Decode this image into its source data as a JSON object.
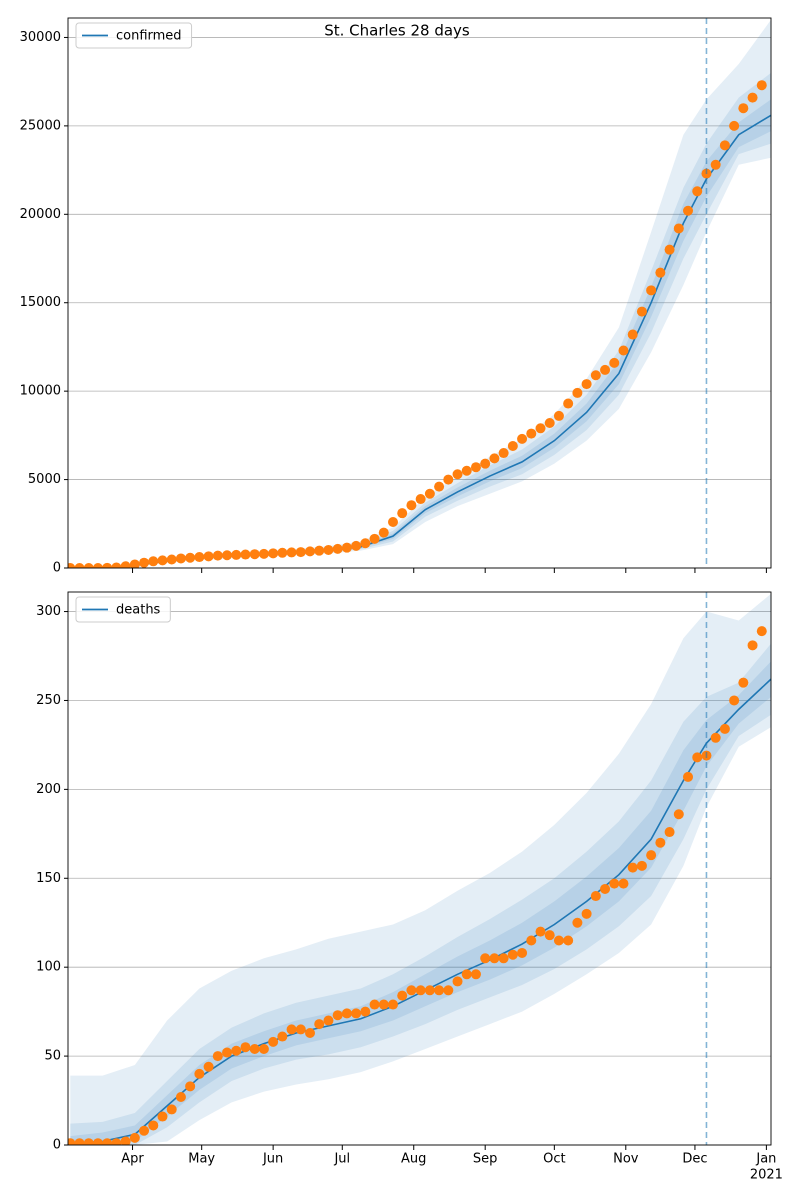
{
  "chart_data": [
    {
      "type": "line",
      "title": "St. Charles 28 days",
      "legend": "upper left",
      "grid": true,
      "xlim": [
        64,
        369
      ],
      "ylim": [
        0,
        31100
      ],
      "yticks": [
        0,
        5000,
        10000,
        15000,
        20000,
        25000,
        30000
      ],
      "xticks": [
        {
          "value": 92,
          "label": "Apr"
        },
        {
          "value": 122,
          "label": "May"
        },
        {
          "value": 153,
          "label": "Jun"
        },
        {
          "value": 183,
          "label": "Jul"
        },
        {
          "value": 214,
          "label": "Aug"
        },
        {
          "value": 245,
          "label": "Sep"
        },
        {
          "value": 275,
          "label": "Oct"
        },
        {
          "value": 306,
          "label": "Nov"
        },
        {
          "value": 336,
          "label": "Dec"
        },
        {
          "value": 367,
          "label": "Jan"
        }
      ],
      "xtick_labels": false,
      "vline": {
        "x": 341,
        "color": "#1f77b4"
      },
      "series": [
        {
          "name": "confirmed",
          "color": "#1f77b4",
          "x": [
            65,
            79,
            93,
            107,
            121,
            135,
            149,
            163,
            177,
            191,
            205,
            219,
            233,
            247,
            261,
            275,
            289,
            303,
            317,
            331,
            341,
            355,
            369
          ],
          "values": [
            0,
            20,
            150,
            400,
            600,
            700,
            780,
            880,
            1000,
            1200,
            1800,
            3300,
            4300,
            5200,
            6000,
            7200,
            8800,
            11000,
            15000,
            19500,
            22000,
            24500,
            25600
          ]
        }
      ],
      "bands": [
        {
          "color": "#1f77b4",
          "x": [
            65,
            79,
            93,
            107,
            121,
            135,
            149,
            163,
            177,
            191,
            205,
            219,
            233,
            247,
            261,
            275,
            289,
            303,
            317,
            331,
            341,
            355,
            369
          ],
          "lower": [
            0,
            0,
            80,
            290,
            460,
            560,
            640,
            720,
            820,
            980,
            1350,
            2600,
            3500,
            4200,
            4900,
            5900,
            7200,
            9000,
            12200,
            16000,
            19000,
            22800,
            23200
          ],
          "upper": [
            50,
            60,
            260,
            540,
            780,
            880,
            960,
            1080,
            1240,
            1500,
            2300,
            4000,
            5200,
            6300,
            7300,
            8700,
            10700,
            13600,
            19000,
            24500,
            26500,
            28500,
            31000
          ]
        },
        {
          "color": "#1f77b4",
          "x": [
            65,
            79,
            93,
            107,
            121,
            135,
            149,
            163,
            177,
            191,
            205,
            219,
            233,
            247,
            261,
            275,
            289,
            303,
            317,
            331,
            341,
            355,
            369
          ],
          "lower": [
            0,
            10,
            110,
            340,
            520,
            620,
            700,
            790,
            890,
            1060,
            1500,
            2900,
            3800,
            4600,
            5300,
            6400,
            7800,
            9800,
            13300,
            17500,
            20000,
            23400,
            24000
          ],
          "upper": [
            20,
            30,
            200,
            460,
            680,
            780,
            860,
            980,
            1120,
            1360,
            2100,
            3700,
            4800,
            5800,
            6700,
            8000,
            9800,
            12300,
            16800,
            21500,
            24000,
            26600,
            28000
          ]
        },
        {
          "color": "#1f77b4",
          "x": [
            65,
            79,
            93,
            107,
            121,
            135,
            149,
            163,
            177,
            191,
            205,
            219,
            233,
            247,
            261,
            275,
            289,
            303,
            317,
            331,
            341,
            355,
            369
          ],
          "lower": [
            0,
            15,
            130,
            370,
            560,
            660,
            740,
            830,
            940,
            1130,
            1650,
            3100,
            4050,
            4900,
            5650,
            6800,
            8300,
            10400,
            14200,
            18500,
            21000,
            23800,
            24700
          ],
          "upper": [
            10,
            25,
            170,
            430,
            640,
            740,
            820,
            930,
            1060,
            1280,
            1950,
            3500,
            4550,
            5500,
            6350,
            7600,
            9300,
            11700,
            15900,
            20600,
            23000,
            25200,
            26500
          ]
        }
      ],
      "observed": {
        "color": "#ff7f0e",
        "x": [
          65,
          69,
          73,
          77,
          81,
          85,
          89,
          93,
          97,
          101,
          105,
          109,
          113,
          117,
          121,
          125,
          129,
          133,
          137,
          141,
          145,
          149,
          153,
          157,
          161,
          165,
          169,
          173,
          177,
          181,
          185,
          189,
          193,
          197,
          201,
          205,
          209,
          213,
          217,
          221,
          225,
          229,
          233,
          237,
          241,
          245,
          249,
          253,
          257,
          261,
          265,
          269,
          273,
          277,
          281,
          285,
          289,
          293,
          297,
          301,
          305,
          309,
          313,
          317,
          321,
          325,
          329,
          333,
          337,
          341,
          345,
          349,
          353,
          357,
          361,
          365
        ],
        "values": [
          0,
          0,
          0,
          0,
          10,
          30,
          100,
          200,
          300,
          380,
          430,
          480,
          540,
          580,
          620,
          660,
          700,
          720,
          740,
          760,
          780,
          800,
          830,
          860,
          880,
          900,
          940,
          980,
          1020,
          1080,
          1150,
          1250,
          1400,
          1650,
          2000,
          2600,
          3100,
          3550,
          3900,
          4200,
          4600,
          5000,
          5300,
          5500,
          5700,
          5900,
          6200,
          6500,
          6900,
          7300,
          7600,
          7900,
          8200,
          8600,
          9300,
          9900,
          10400,
          10900,
          11200,
          11600,
          12300,
          13200,
          14500,
          15700,
          16700,
          18000,
          19200,
          20200,
          21300,
          22300,
          22800,
          23900,
          25000,
          26000,
          26600,
          27300
        ]
      }
    },
    {
      "type": "line",
      "legend": "upper left",
      "grid": true,
      "xlim": [
        64,
        369
      ],
      "ylim": [
        0,
        311
      ],
      "yticks": [
        0,
        50,
        100,
        150,
        200,
        250,
        300
      ],
      "xticks": [
        {
          "value": 92,
          "label": "Apr"
        },
        {
          "value": 122,
          "label": "May"
        },
        {
          "value": 153,
          "label": "Jun"
        },
        {
          "value": 183,
          "label": "Jul"
        },
        {
          "value": 214,
          "label": "Aug"
        },
        {
          "value": 245,
          "label": "Sep"
        },
        {
          "value": 275,
          "label": "Oct"
        },
        {
          "value": 306,
          "label": "Nov"
        },
        {
          "value": 336,
          "label": "Dec"
        },
        {
          "value": 367,
          "label": "Jan",
          "sublabel": "2021"
        }
      ],
      "xtick_labels": true,
      "vline": {
        "x": 341,
        "color": "#1f77b4"
      },
      "series": [
        {
          "name": "deaths",
          "color": "#1f77b4",
          "x": [
            65,
            79,
            93,
            107,
            121,
            135,
            149,
            163,
            177,
            191,
            205,
            219,
            233,
            247,
            261,
            275,
            289,
            303,
            317,
            331,
            341,
            355,
            369
          ],
          "values": [
            1,
            2,
            6,
            22,
            38,
            50,
            57,
            63,
            67,
            71,
            78,
            87,
            96,
            104,
            113,
            124,
            137,
            152,
            172,
            205,
            226,
            245,
            262
          ]
        }
      ],
      "bands": [
        {
          "color": "#1f77b4",
          "x": [
            65,
            79,
            93,
            107,
            121,
            135,
            149,
            163,
            177,
            191,
            205,
            219,
            233,
            247,
            261,
            275,
            289,
            303,
            317,
            331,
            341,
            355,
            369
          ],
          "lower": [
            0,
            0,
            0,
            2,
            14,
            24,
            30,
            34,
            37,
            41,
            47,
            54,
            61,
            68,
            75,
            85,
            96,
            108,
            124,
            157,
            190,
            224,
            235
          ],
          "upper": [
            39,
            39,
            45,
            70,
            88,
            98,
            105,
            110,
            116,
            120,
            124,
            132,
            143,
            153,
            165,
            180,
            198,
            220,
            248,
            285,
            300,
            295,
            310
          ]
        },
        {
          "color": "#1f77b4",
          "x": [
            65,
            79,
            93,
            107,
            121,
            135,
            149,
            163,
            177,
            191,
            205,
            219,
            233,
            247,
            261,
            275,
            289,
            303,
            317,
            331,
            341,
            355,
            369
          ],
          "lower": [
            0,
            0,
            0,
            10,
            24,
            36,
            43,
            48,
            51,
            55,
            61,
            68,
            76,
            83,
            90,
            99,
            110,
            123,
            140,
            172,
            200,
            230,
            242
          ],
          "upper": [
            12,
            13,
            18,
            36,
            54,
            66,
            74,
            80,
            84,
            88,
            96,
            106,
            117,
            127,
            138,
            150,
            165,
            182,
            205,
            238,
            252,
            260,
            282
          ]
        },
        {
          "color": "#1f77b4",
          "x": [
            65,
            79,
            93,
            107,
            121,
            135,
            149,
            163,
            177,
            191,
            205,
            219,
            233,
            247,
            261,
            275,
            289,
            303,
            317,
            331,
            341,
            355,
            369
          ],
          "lower": [
            0,
            0,
            2,
            16,
            31,
            43,
            50,
            56,
            60,
            64,
            70,
            78,
            86,
            93,
            101,
            111,
            123,
            137,
            156,
            188,
            213,
            237,
            252
          ],
          "upper": [
            5,
            7,
            11,
            28,
            45,
            57,
            64,
            70,
            74,
            78,
            86,
            96,
            106,
            115,
            125,
            137,
            151,
            167,
            188,
            222,
            239,
            253,
            272
          ]
        }
      ],
      "observed": {
        "color": "#ff7f0e",
        "x": [
          65,
          69,
          73,
          77,
          81,
          85,
          89,
          93,
          97,
          101,
          105,
          109,
          113,
          117,
          121,
          125,
          129,
          133,
          137,
          141,
          145,
          149,
          153,
          157,
          161,
          165,
          169,
          173,
          177,
          181,
          185,
          189,
          193,
          197,
          201,
          205,
          209,
          213,
          217,
          221,
          225,
          229,
          233,
          237,
          241,
          245,
          249,
          253,
          257,
          261,
          265,
          269,
          273,
          277,
          281,
          285,
          289,
          293,
          297,
          301,
          305,
          309,
          313,
          317,
          321,
          325,
          329,
          333,
          337,
          341,
          345,
          349,
          353,
          357,
          361,
          365
        ],
        "values": [
          1,
          1,
          1,
          1,
          1,
          1,
          2,
          4,
          8,
          11,
          16,
          20,
          27,
          33,
          40,
          44,
          50,
          52,
          53,
          55,
          54,
          54,
          58,
          61,
          65,
          65,
          63,
          68,
          70,
          73,
          74,
          74,
          75,
          79,
          79,
          79,
          84,
          87,
          87,
          87,
          87,
          87,
          92,
          96,
          96,
          105,
          105,
          105,
          107,
          108,
          115,
          120,
          118,
          115,
          115,
          125,
          130,
          140,
          144,
          147,
          147,
          156,
          157,
          163,
          170,
          176,
          186,
          207,
          218,
          219,
          229,
          234,
          250,
          260,
          281,
          289
        ]
      }
    }
  ]
}
